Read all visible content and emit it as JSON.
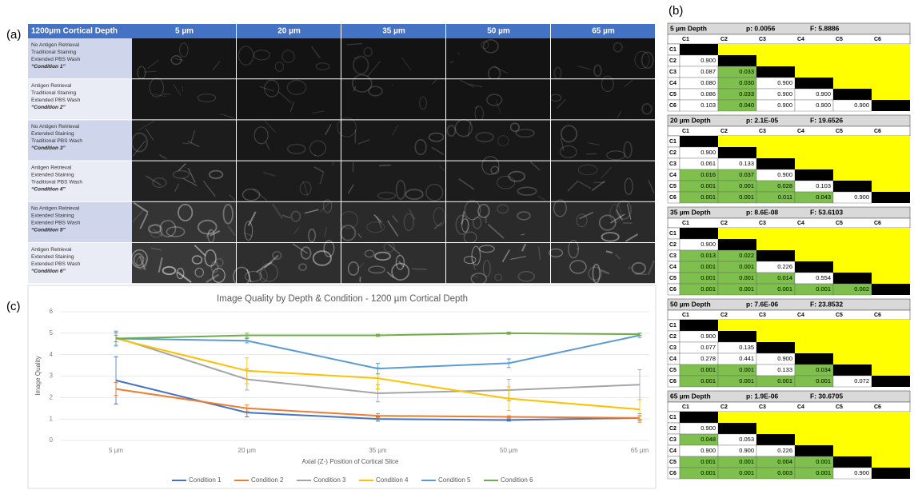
{
  "panel_labels": [
    "(a)",
    "(b)",
    "(c)"
  ],
  "panel_a": {
    "corner": "1200µm Cortical Depth",
    "columns": [
      "5 µm",
      "20 µm",
      "35 µm",
      "50 µm",
      "65 µm"
    ],
    "rows": [
      {
        "lines": [
          "No Antigen Retrieval",
          "Traditional Staining",
          "Extended PBS Wash"
        ],
        "condition": "“Condition 1”"
      },
      {
        "lines": [
          "Antigen Retrieval",
          "Traditional Staining",
          "Extended PBS Wash"
        ],
        "condition": "“Condition 2”"
      },
      {
        "lines": [
          "No Antigen Retrieval",
          "Extended Staining",
          "Traditional PBS Wash"
        ],
        "condition": "“Condition 3”"
      },
      {
        "lines": [
          "Antigen Retrieval",
          "Extended Staining",
          "Traditional PBS Wash"
        ],
        "condition": "“Condition 4”"
      },
      {
        "lines": [
          "No Antigen Retrieval",
          "Extended Staining",
          "Extended PBS Wash"
        ],
        "condition": "“Condition 5”"
      },
      {
        "lines": [
          "Antigen Retrieval",
          "Extended Staining",
          "Extended PBS Wash"
        ],
        "condition": "“Condition 6”"
      }
    ]
  },
  "panel_b": {
    "columns": [
      "C1",
      "C2",
      "C3",
      "C4",
      "C5",
      "C6"
    ],
    "tables": [
      {
        "depth": "5 µm Depth",
        "p": "p: 0.0056",
        "f": "F: 5.8886",
        "rows": [
          [],
          [
            "0.900"
          ],
          [
            "0.087",
            "0.033"
          ],
          [
            "0.080",
            "0.030",
            "0.900"
          ],
          [
            "0.086",
            "0.033",
            "0.900",
            "0.900"
          ],
          [
            "0.103",
            "0.040",
            "0.900",
            "0.900",
            "0.900"
          ]
        ]
      },
      {
        "depth": "20 µm Depth",
        "p": "p: 2.1E-05",
        "f": "F: 19.6526",
        "rows": [
          [],
          [
            "0.900"
          ],
          [
            "0.061",
            "0.133"
          ],
          [
            "0.016",
            "0.037",
            "0.900"
          ],
          [
            "0.001",
            "0.001",
            "0.028",
            "0.103"
          ],
          [
            "0.001",
            "0.001",
            "0.011",
            "0.043",
            "0.900"
          ]
        ]
      },
      {
        "depth": "35 µm Depth",
        "p": "p: 8.6E-08",
        "f": "F: 53.6103",
        "rows": [
          [],
          [
            "0.900"
          ],
          [
            "0.013",
            "0.022"
          ],
          [
            "0.001",
            "0.001",
            "0.226"
          ],
          [
            "0.001",
            "0.001",
            "0.014",
            "0.554"
          ],
          [
            "0.001",
            "0.001",
            "0.001",
            "0.001",
            "0.002"
          ]
        ]
      },
      {
        "depth": "50 µm Depth",
        "p": "p: 7.6E-06",
        "f": "F: 23.8532",
        "rows": [
          [],
          [
            "0.900"
          ],
          [
            "0.077",
            "0.135"
          ],
          [
            "0.278",
            "0.441",
            "0.900"
          ],
          [
            "0.001",
            "0.001",
            "0.133",
            "0.034"
          ],
          [
            "0.001",
            "0.001",
            "0.001",
            "0.001",
            "0.072"
          ]
        ]
      },
      {
        "depth": "65 µm Depth",
        "p": "p: 1.9E-06",
        "f": "F: 30.6705",
        "rows": [
          [],
          [
            "0.900"
          ],
          [
            "0.048",
            "0.053"
          ],
          [
            "0.900",
            "0.900",
            "0.226"
          ],
          [
            "0.001",
            "0.001",
            "0.004",
            "0.001"
          ],
          [
            "0.001",
            "0.001",
            "0.003",
            "0.001",
            "0.900"
          ]
        ]
      }
    ]
  },
  "chart_data": {
    "type": "line",
    "title": "Image Quality by Depth & Condition - 1200 µm Cortical Depth",
    "x_label": "Axial (Z-) Position of Cortical Slice",
    "y_label": "Image Quality",
    "categories": [
      "5 µm",
      "20 µm",
      "35 µm",
      "50 µm",
      "65 µm"
    ],
    "ylim": [
      0,
      6
    ],
    "yticks": [
      0,
      1,
      2,
      3,
      4,
      5,
      6
    ],
    "grid": true,
    "legend": "bottom",
    "series": [
      {
        "name": "Condition 1",
        "color": "#4472c4",
        "values": [
          2.8,
          1.3,
          1.0,
          0.95,
          1.05
        ],
        "errors": [
          1.1,
          0.2,
          0.1,
          0.05,
          0.1
        ]
      },
      {
        "name": "Condition 2",
        "color": "#ed7d31",
        "values": [
          2.4,
          1.5,
          1.15,
          1.1,
          1.05
        ],
        "errors": [
          0.3,
          0.15,
          0.1,
          0.05,
          0.2
        ]
      },
      {
        "name": "Condition 3",
        "color": "#a5a5a5",
        "values": [
          4.8,
          2.85,
          2.2,
          2.35,
          2.6
        ],
        "errors": [
          0.2,
          0.5,
          0.4,
          0.5,
          0.7
        ]
      },
      {
        "name": "Condition 4",
        "color": "#ffc000",
        "values": [
          4.75,
          3.25,
          2.9,
          1.95,
          1.45
        ],
        "errors": [
          0.3,
          0.6,
          0.5,
          0.55,
          0.45
        ]
      },
      {
        "name": "Condition 5",
        "color": "#5b9bd5",
        "values": [
          4.75,
          4.65,
          3.35,
          3.6,
          4.9
        ],
        "errors": [
          0.35,
          0.1,
          0.25,
          0.2,
          0.1
        ]
      },
      {
        "name": "Condition 6",
        "color": "#70ad47",
        "values": [
          4.75,
          4.9,
          4.9,
          5.0,
          4.95
        ],
        "errors": [
          0.15,
          0.1,
          0.05,
          0.05,
          0.05
        ]
      }
    ]
  }
}
